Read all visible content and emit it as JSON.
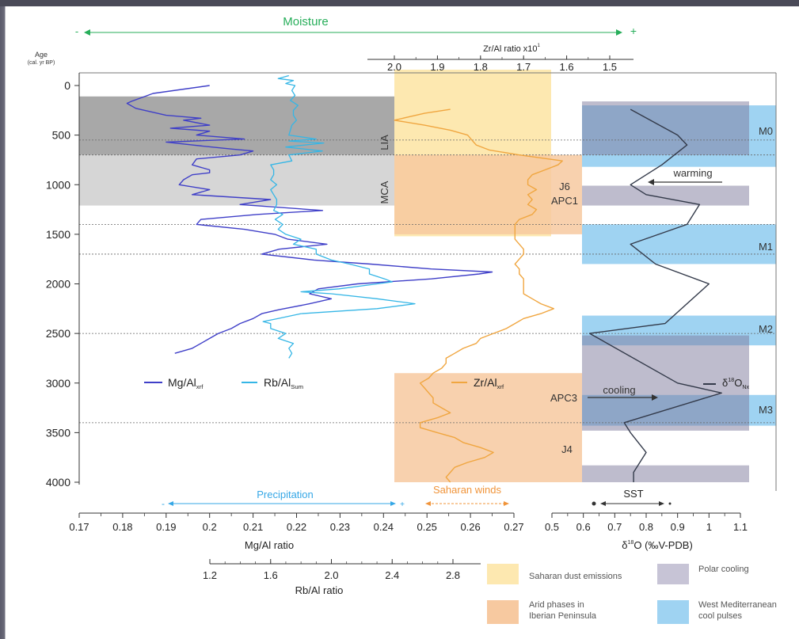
{
  "chart_data": {
    "type": "line",
    "colors": {
      "mg": "#3f3fc8",
      "rb": "#35b6e6",
      "zr": "#f0a640",
      "d18o": "#333a4a",
      "gray_dark": "#a8a8a8",
      "gray_light": "#d6d6d6",
      "saharan_dust": "#fde8b0",
      "arid": "#f7c9a0",
      "polar": "#c7c4d6",
      "cool": "#9fd3f2",
      "moisture": "#27ae5a",
      "precip": "#35a7e6",
      "winds": "#f0943a"
    },
    "age_axis": {
      "title_1": "Age",
      "title_2": "(cal. yr BP)",
      "ticks": [
        0,
        500,
        1000,
        1500,
        2000,
        2500,
        3000,
        3500,
        4000
      ],
      "range": [
        -100,
        4000
      ]
    },
    "mg_axis": {
      "label": "Mg/Al ratio",
      "range": [
        0.17,
        0.27
      ],
      "ticks": [
        "0.17",
        "0.18",
        "0.19",
        "0.2",
        "0.21",
        "0.22",
        "0.23",
        "0.24",
        "0.25",
        "0.26",
        "0.27"
      ]
    },
    "rb_axis": {
      "label": "Rb/Al ratio",
      "range": [
        1.2,
        2.8
      ],
      "ticks": [
        "1.2",
        "1.6",
        "2.0",
        "2.4",
        "2.8"
      ]
    },
    "zr_axis": {
      "label": "Zr/Al ratio x10",
      "label_sup": "1",
      "range": [
        2.0,
        1.5
      ],
      "ticks": [
        "2.0",
        "1.9",
        "1.8",
        "1.7",
        "1.6",
        "1.5"
      ]
    },
    "d18o_axis": {
      "label_pre": "δ",
      "label_sup": "18",
      "label_post": "O (‰V-PDB)",
      "range": [
        0.5,
        1.1
      ],
      "ticks": [
        "0.5",
        "0.6",
        "0.7",
        "0.8",
        "0.9",
        "1",
        "1.1"
      ]
    },
    "moisture": {
      "label": "Moisture",
      "minus": "-",
      "plus": "+"
    },
    "precipitation_label": "Precipitation",
    "saharan_winds_label": "Saharan winds",
    "sst_label": "SST",
    "period_labels": {
      "lia": "LIA",
      "mca": "MCA"
    },
    "event_labels": {
      "j6": "J6",
      "apc1": "APC1",
      "apc3": "APC3",
      "j4": "J4"
    },
    "pulse_labels": {
      "m0": "M0",
      "m1": "M1",
      "m2": "M2",
      "m3": "M3"
    },
    "annotations": {
      "warming": "warming",
      "cooling": "cooling"
    },
    "legend": {
      "mg": "Mg/Al",
      "mg_sub": "xrf",
      "rb": "Rb/Al",
      "rb_sub": "Sum",
      "zr": "Zr/Al",
      "zr_sub": "xrf",
      "d18o_pre": "δ",
      "d18o_sup": "18",
      "d18o_post": "O",
      "d18o_sub": "Nx"
    },
    "legend_boxes": {
      "saharan_dust": "Saharan dust emissions",
      "polar_cooling": "Polar cooling",
      "arid_1": "Arid phases in",
      "arid_2": "Iberian Peninsula",
      "cool_1": "West Mediterranean",
      "cool_2": "cool pulses"
    },
    "dashed_ages": [
      550,
      700,
      1400,
      1700,
      2500,
      3400
    ],
    "gray_bands": [
      {
        "from": 110,
        "to": 700,
        "shade": "dark"
      },
      {
        "from": 700,
        "to": 1210,
        "shade": "light"
      }
    ],
    "saharan_dust_band": {
      "from": 0,
      "to": 1520
    },
    "arid_bands": [
      {
        "from": 700,
        "to": 1500
      },
      {
        "from": 2900,
        "to": 4000
      }
    ],
    "polar_bands": [
      {
        "from": 160,
        "to": 700
      },
      {
        "from": 1010,
        "to": 1210
      },
      {
        "from": 2520,
        "to": 3480
      },
      {
        "from": 3830,
        "to": 4000
      }
    ],
    "cool_bands": [
      {
        "from": 200,
        "to": 820
      },
      {
        "from": 1400,
        "to": 1800
      },
      {
        "from": 2320,
        "to": 2620
      },
      {
        "from": 3120,
        "to": 3430
      }
    ],
    "series": [
      {
        "name": "Mg/Al",
        "key": "mg",
        "age": [
          0,
          80,
          160,
          180,
          230,
          270,
          300,
          330,
          350,
          400,
          430,
          460,
          500,
          540,
          570,
          600,
          640,
          660,
          700,
          740,
          800,
          850,
          880,
          900,
          950,
          1000,
          1050,
          1100,
          1150,
          1200,
          1260,
          1300,
          1350,
          1400,
          1450,
          1500,
          1550,
          1600,
          1650,
          1700,
          1760,
          1800,
          1850,
          1880,
          1900,
          1950,
          2000,
          2050,
          2100,
          2150,
          2200,
          2260,
          2300,
          2350,
          2400,
          2450,
          2500,
          2550,
          2600,
          2650,
          2700
        ],
        "x": [
          0.2,
          0.187,
          0.182,
          0.181,
          0.183,
          0.187,
          0.19,
          0.198,
          0.194,
          0.2,
          0.191,
          0.2,
          0.197,
          0.208,
          0.19,
          0.196,
          0.205,
          0.21,
          0.207,
          0.197,
          0.196,
          0.2,
          0.2,
          0.196,
          0.194,
          0.193,
          0.2,
          0.196,
          0.214,
          0.207,
          0.226,
          0.211,
          0.198,
          0.197,
          0.208,
          0.215,
          0.218,
          0.227,
          0.216,
          0.212,
          0.224,
          0.237,
          0.251,
          0.265,
          0.262,
          0.251,
          0.234,
          0.225,
          0.223,
          0.228,
          0.223,
          0.216,
          0.212,
          0.21,
          0.207,
          0.205,
          0.202,
          0.2,
          0.198,
          0.196,
          0.192
        ]
      },
      {
        "name": "Rb/Al",
        "key": "rb",
        "age": [
          -100,
          -70,
          -50,
          -20,
          0,
          50,
          100,
          150,
          200,
          250,
          300,
          350,
          400,
          450,
          500,
          540,
          560,
          580,
          620,
          660,
          700,
          760,
          800,
          850,
          900,
          950,
          1000,
          1050,
          1100,
          1150,
          1200,
          1260,
          1300,
          1350,
          1400,
          1450,
          1500,
          1550,
          1600,
          1650,
          1700,
          1760,
          1800,
          1850,
          1900,
          1950,
          1980,
          2000,
          2050,
          2080,
          2100,
          2150,
          2200,
          2250,
          2300,
          2350,
          2380,
          2400,
          2450,
          2500,
          2550,
          2600,
          2650,
          2700,
          2750
        ],
        "x": [
          1.72,
          1.65,
          1.75,
          1.7,
          1.76,
          1.74,
          1.76,
          1.73,
          1.78,
          1.75,
          1.75,
          1.77,
          1.74,
          1.73,
          1.72,
          1.9,
          1.72,
          1.95,
          1.7,
          1.94,
          1.72,
          1.74,
          1.6,
          1.62,
          1.62,
          1.6,
          1.64,
          1.6,
          1.62,
          1.64,
          1.64,
          1.62,
          1.68,
          1.63,
          1.68,
          1.65,
          1.7,
          1.8,
          1.75,
          1.9,
          1.9,
          2.0,
          2.12,
          2.25,
          2.25,
          2.35,
          2.4,
          2.3,
          2.05,
          1.8,
          2.0,
          2.3,
          2.55,
          2.3,
          1.8,
          1.65,
          1.55,
          1.6,
          1.6,
          1.7,
          1.65,
          1.75,
          1.72,
          1.74,
          1.72
        ]
      },
      {
        "name": "Zr/Al",
        "key": "zr",
        "age": [
          240,
          280,
          350,
          400,
          450,
          500,
          550,
          600,
          650,
          700,
          760,
          800,
          850,
          900,
          950,
          1000,
          1050,
          1100,
          1150,
          1200,
          1250,
          1300,
          1350,
          1400,
          1450,
          1500,
          1550,
          1600,
          1650,
          1700,
          1750,
          1800,
          1850,
          1900,
          1950,
          2000,
          2050,
          2100,
          2150,
          2200,
          2250,
          2300,
          2350,
          2400,
          2450,
          2500,
          2550,
          2600,
          2650,
          2700,
          2750,
          2800,
          2850,
          2900,
          2950,
          3000,
          3050,
          3100,
          3150,
          3200,
          3250,
          3300,
          3350,
          3400,
          3450,
          3500,
          3550,
          3600,
          3650,
          3700,
          3750,
          3800,
          3850,
          3900,
          3950,
          4000
        ],
        "x": [
          1.87,
          1.93,
          2.0,
          1.93,
          1.87,
          1.83,
          1.82,
          1.81,
          1.78,
          1.71,
          1.61,
          1.62,
          1.65,
          1.68,
          1.69,
          1.69,
          1.67,
          1.69,
          1.68,
          1.69,
          1.67,
          1.68,
          1.71,
          1.72,
          1.72,
          1.72,
          1.72,
          1.71,
          1.7,
          1.7,
          1.71,
          1.72,
          1.71,
          1.71,
          1.7,
          1.7,
          1.7,
          1.7,
          1.68,
          1.66,
          1.63,
          1.66,
          1.7,
          1.72,
          1.74,
          1.77,
          1.8,
          1.81,
          1.84,
          1.86,
          1.88,
          1.88,
          1.89,
          1.91,
          1.92,
          1.94,
          1.93,
          1.92,
          1.91,
          1.91,
          1.89,
          1.87,
          1.9,
          1.94,
          1.94,
          1.9,
          1.86,
          1.84,
          1.8,
          1.77,
          1.79,
          1.83,
          1.86,
          1.87,
          1.88,
          1.87
        ]
      },
      {
        "name": "δ18O",
        "key": "d18o",
        "age": [
          240,
          500,
          600,
          800,
          1000,
          1100,
          1200,
          1400,
          1600,
          1800,
          2000,
          2400,
          2500,
          3000,
          3100,
          3400,
          3500,
          3700,
          3900,
          4000
        ],
        "x": [
          0.75,
          0.9,
          0.93,
          0.85,
          0.75,
          0.8,
          0.97,
          0.93,
          0.75,
          0.83,
          1.0,
          0.86,
          0.62,
          0.9,
          1.04,
          0.73,
          0.75,
          0.8,
          0.76,
          0.76
        ]
      }
    ]
  }
}
